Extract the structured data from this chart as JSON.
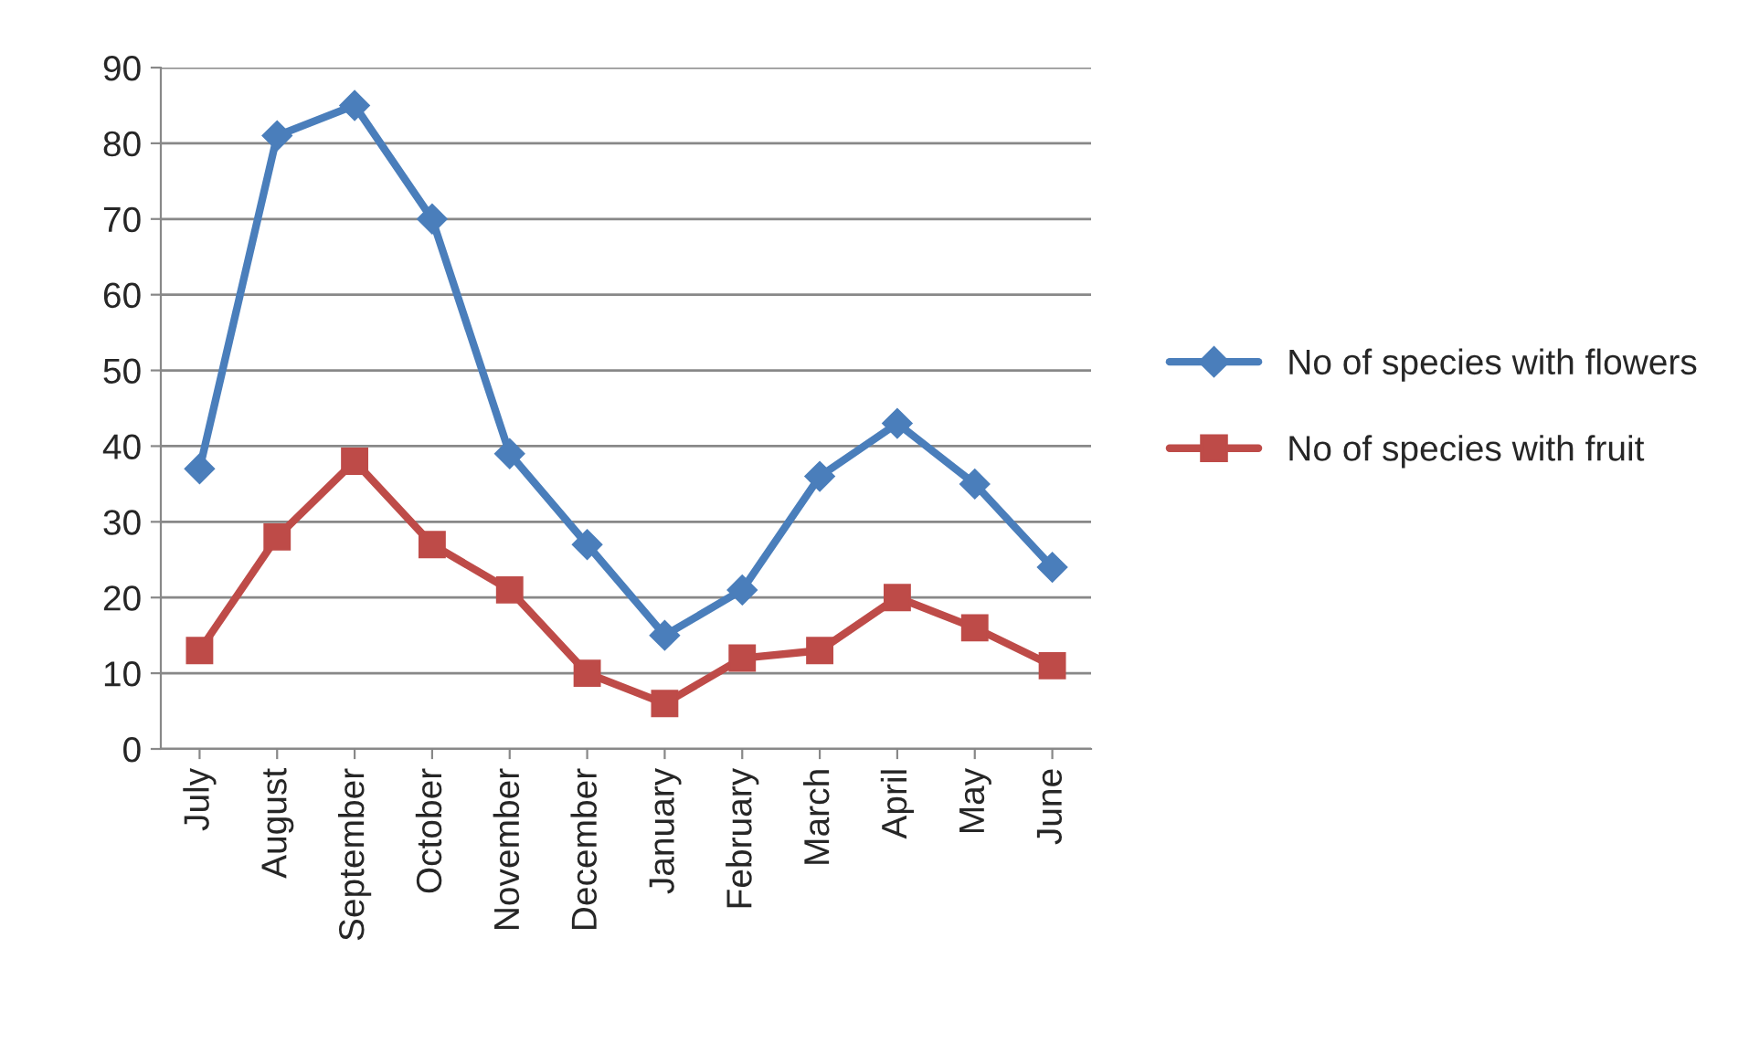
{
  "chart_data": {
    "type": "line",
    "categories": [
      "July",
      "August",
      "September",
      "October",
      "November",
      "December",
      "January",
      "February",
      "March",
      "April",
      "May",
      "June"
    ],
    "series": [
      {
        "name": "No of species with flowers",
        "color": "#4a7ebb",
        "marker": "diamond",
        "values": [
          37,
          81,
          85,
          70,
          39,
          27,
          15,
          21,
          36,
          43,
          35,
          24
        ]
      },
      {
        "name": "No of species with fruit",
        "color": "#be4b48",
        "marker": "square",
        "values": [
          13,
          28,
          38,
          27,
          21,
          10,
          6,
          12,
          13,
          20,
          16,
          11
        ]
      }
    ],
    "ylim": [
      0,
      90
    ],
    "yticks": [
      0,
      10,
      20,
      30,
      40,
      50,
      60,
      70,
      80,
      90
    ],
    "grid": "y",
    "legend": "right",
    "line_style": "solid"
  }
}
